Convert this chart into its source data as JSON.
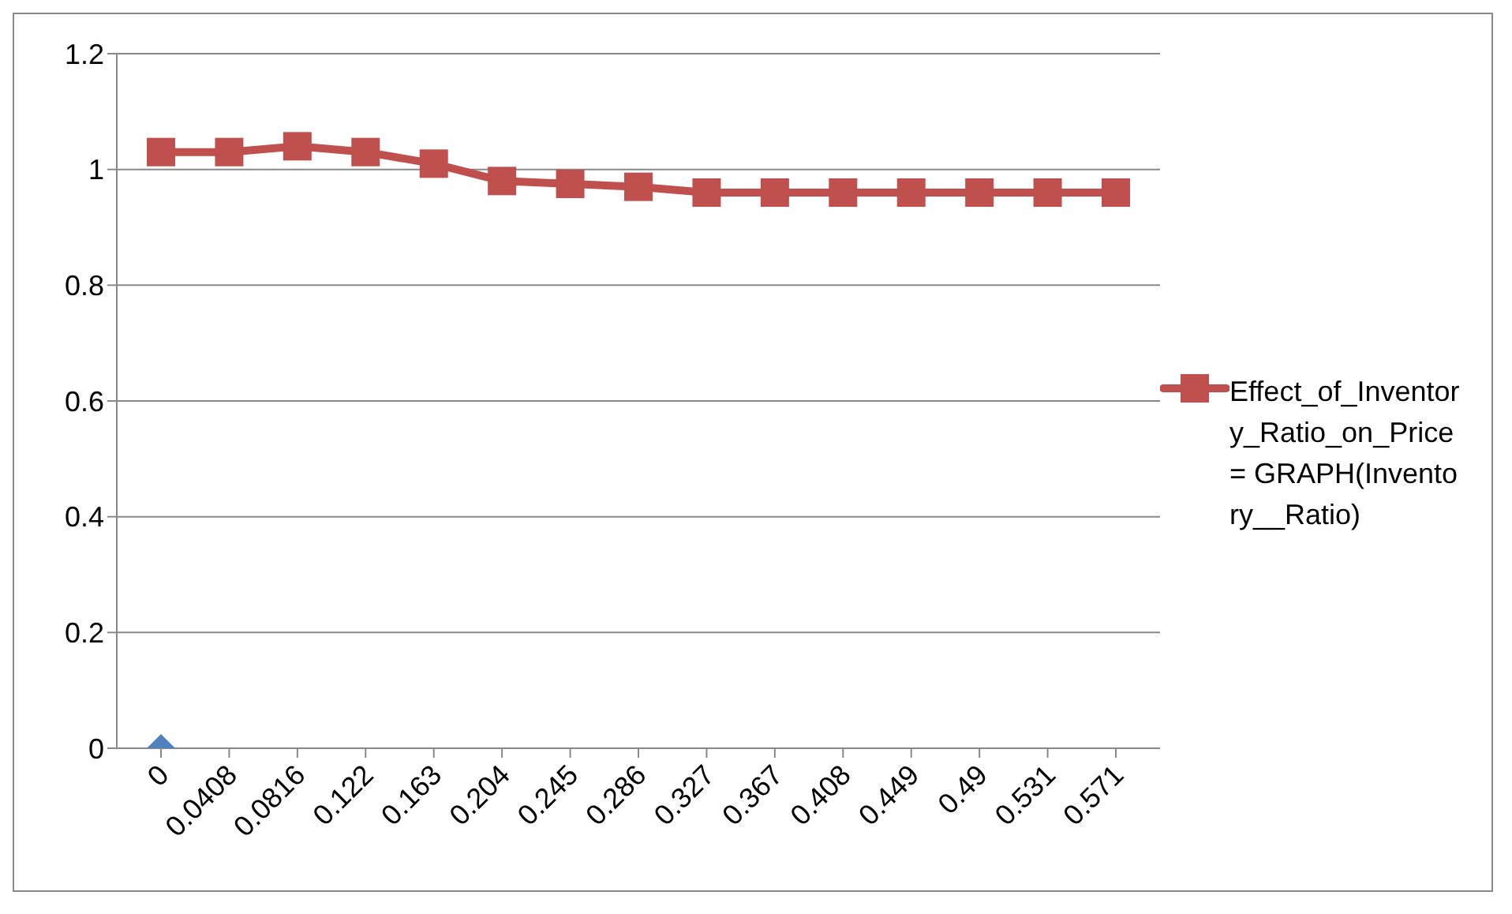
{
  "chart_data": {
    "type": "line",
    "categories": [
      "0",
      "0.0408",
      "0.0816",
      "0.122",
      "0.163",
      "0.204",
      "0.245",
      "0.286",
      "0.327",
      "0.367",
      "0.408",
      "0.449",
      "0.49",
      "0.531",
      "0.571"
    ],
    "series": [
      {
        "name": "Effect_of_Inventory_Ratio_on_Price = GRAPH(Inventory__Ratio)",
        "color": "#c0504d",
        "marker": "square",
        "values": [
          1.03,
          1.03,
          1.04,
          1.03,
          1.01,
          0.98,
          0.975,
          0.97,
          0.96,
          0.96,
          0.96,
          0.96,
          0.96,
          0.96,
          0.96
        ]
      },
      {
        "type": "scatter",
        "color": "#4f81bd",
        "marker": "diamond",
        "values": [
          0,
          null,
          null,
          null,
          null,
          null,
          null,
          null,
          null,
          null,
          null,
          null,
          null,
          null,
          null
        ]
      }
    ],
    "ylim": [
      0,
      1.2
    ],
    "yticks": [
      0,
      0.2,
      0.4,
      0.6,
      0.8,
      1,
      1.2
    ],
    "grid": "y",
    "legend": "right"
  }
}
